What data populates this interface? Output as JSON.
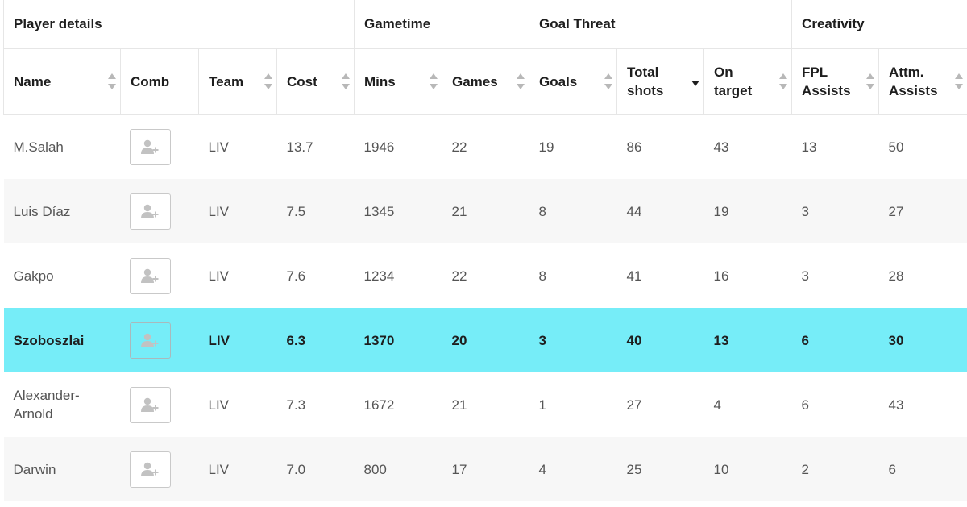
{
  "groups": {
    "player_details": "Player details",
    "gametime": "Gametime",
    "goal_threat": "Goal Threat",
    "creativity": "Creativity"
  },
  "columns": {
    "name": "Name",
    "comb": "Comb",
    "team": "Team",
    "cost": "Cost",
    "mins": "Mins",
    "games": "Games",
    "goals": "Goals",
    "total_shots_line1": "Total",
    "total_shots_line2": "shots",
    "on_target_line1": "On",
    "on_target_line2": "target",
    "fpl_assists_line1": "FPL",
    "fpl_assists_line2": "Assists",
    "attm_assists_line1": "Attm.",
    "attm_assists_line2": "Assists"
  },
  "sorted_column": "total_shots",
  "icons": {
    "comb": "add-player-icon"
  },
  "colors": {
    "highlight": "#76edf8"
  },
  "rows": [
    {
      "name": "M.Salah",
      "team": "LIV",
      "cost": "13.7",
      "mins": "1946",
      "games": "22",
      "goals": "19",
      "total_shots": "86",
      "on_target": "43",
      "fpl_assists": "13",
      "attm_assists": "50"
    },
    {
      "name": "Luis Díaz",
      "team": "LIV",
      "cost": "7.5",
      "mins": "1345",
      "games": "21",
      "goals": "8",
      "total_shots": "44",
      "on_target": "19",
      "fpl_assists": "3",
      "attm_assists": "27"
    },
    {
      "name": "Gakpo",
      "team": "LIV",
      "cost": "7.6",
      "mins": "1234",
      "games": "22",
      "goals": "8",
      "total_shots": "41",
      "on_target": "16",
      "fpl_assists": "3",
      "attm_assists": "28"
    },
    {
      "name": "Szoboszlai",
      "team": "LIV",
      "cost": "6.3",
      "mins": "1370",
      "games": "20",
      "goals": "3",
      "total_shots": "40",
      "on_target": "13",
      "fpl_assists": "6",
      "attm_assists": "30",
      "highlighted": true
    },
    {
      "name": "Alexander-Arnold",
      "team": "LIV",
      "cost": "7.3",
      "mins": "1672",
      "games": "21",
      "goals": "1",
      "total_shots": "27",
      "on_target": "4",
      "fpl_assists": "6",
      "attm_assists": "43"
    },
    {
      "name": "Darwin",
      "team": "LIV",
      "cost": "7.0",
      "mins": "800",
      "games": "17",
      "goals": "4",
      "total_shots": "25",
      "on_target": "10",
      "fpl_assists": "2",
      "attm_assists": "6"
    }
  ]
}
